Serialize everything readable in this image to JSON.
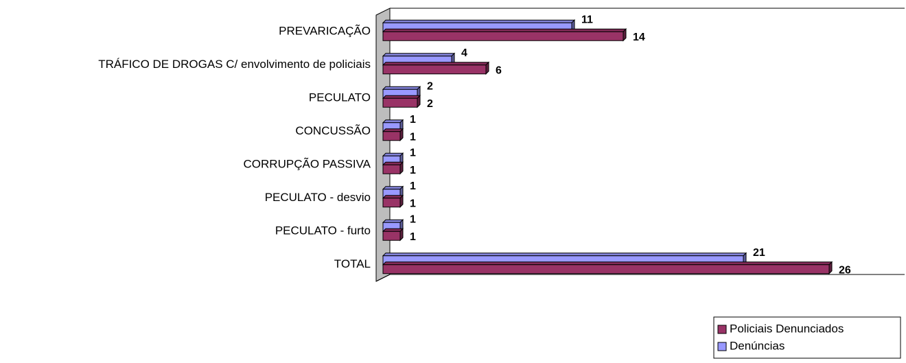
{
  "chart_data": {
    "type": "bar",
    "orientation": "horizontal",
    "categories": [
      "PREVARICAÇÃO",
      "TRÁFICO DE DROGAS C/ envolvimento de policiais",
      "PECULATO",
      "CONCUSSÃO",
      "CORRUPÇÃO PASSIVA",
      "PECULATO - desvio",
      "PECULATO - furto",
      "TOTAL"
    ],
    "series": [
      {
        "name": "Denúncias",
        "color": "#9999ff",
        "values": [
          11,
          4,
          2,
          1,
          1,
          1,
          1,
          21
        ]
      },
      {
        "name": "Policiais Denunciados",
        "color": "#993366",
        "values": [
          14,
          6,
          2,
          1,
          1,
          1,
          1,
          26
        ]
      }
    ],
    "xlim": [
      0,
      30
    ],
    "legend": "bottom-right"
  }
}
